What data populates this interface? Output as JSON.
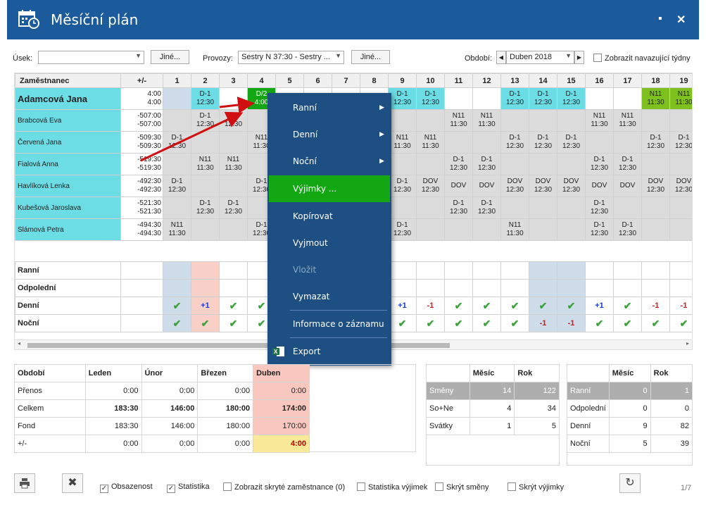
{
  "window": {
    "title": "Měsíční plán",
    "min": "▪",
    "close": "✕"
  },
  "filters": {
    "usek_label": "Úsek:",
    "usek_value": "",
    "jine1": "Jiné...",
    "provozy_label": "Provozy:",
    "provozy_value": "Sestry N 37:30 - Sestry ...",
    "jine2": "Jiné...",
    "obdobi_label": "Období:",
    "obdobi_value": "Duben 2018",
    "navazujici_label": "Zobrazit navazující týdny"
  },
  "grid": {
    "h_name": "Zaměstnanec",
    "h_diff": "+/-",
    "days": [
      "1",
      "2",
      "3",
      "4",
      "5",
      "6",
      "7",
      "8",
      "9",
      "10",
      "11",
      "12",
      "13",
      "14",
      "15",
      "16",
      "17",
      "18",
      "19"
    ],
    "rows": [
      {
        "name": "Adamcová Jana",
        "d1": "4:00",
        "d2": "4:00",
        "cells": [
          "",
          "D-1|12:30",
          "",
          "D/2|4:00",
          "",
          "",
          "",
          "",
          "D-1|12:30",
          "D-1|12:30",
          "",
          "",
          "D-1|12:30",
          "D-1|12:30",
          "D-1|12:30",
          "",
          "",
          "N11|11:30",
          "N11|11:30"
        ]
      },
      {
        "name": "Brabcová Eva",
        "d1": "-507:00",
        "d2": "-507:00",
        "cells": [
          "",
          "D-1|12:30",
          "D-1|12:30",
          "",
          "",
          "",
          "",
          "",
          "",
          "",
          "N11|11:30",
          "N11|11:30",
          "",
          "",
          "",
          "N11|11:30",
          "N11|11:30",
          "",
          ""
        ]
      },
      {
        "name": "Červená Jana",
        "d1": "-509:30",
        "d2": "-509:30",
        "cells": [
          "D-1|12:30",
          "",
          "",
          "N11|11:30",
          "",
          "",
          "",
          "",
          "N11|11:30",
          "N11|11:30",
          "",
          "",
          "D-1|12:30",
          "D-1|12:30",
          "D-1|12:30",
          "",
          "",
          "D-1|12:30",
          "D-1|12:30"
        ]
      },
      {
        "name": "Fialová Anna",
        "d1": "-519:30",
        "d2": "-519:30",
        "cells": [
          "",
          "N11|11:30",
          "N11|11:30",
          "",
          "",
          "",
          "",
          "",
          "",
          "",
          "D-1|12:30",
          "D-1|12:30",
          "",
          "",
          "",
          "D-1|12:30",
          "D-1|12:30",
          "",
          ""
        ]
      },
      {
        "name": "Havlíková Lenka",
        "d1": "-492:30",
        "d2": "-492:30",
        "cells": [
          "D-1|12:30",
          "",
          "",
          "D-1|12:30",
          "",
          "",
          "",
          "",
          "D-1|12:30",
          "DOV|12:30",
          "DOV",
          "DOV",
          "DOV|12:30",
          "DOV|12:30",
          "DOV|12:30",
          "DOV",
          "DOV",
          "DOV|12:30",
          "DOV|12:30"
        ]
      },
      {
        "name": "Kubešová Jaroslava",
        "d1": "-521:30",
        "d2": "-521:30",
        "cells": [
          "",
          "D-1|12:30",
          "D-1|12:30",
          "",
          "",
          "",
          "",
          "",
          "",
          "",
          "D-1|12:30",
          "D-1|12:30",
          "",
          "",
          "",
          "D-1|12:30",
          "",
          "",
          ""
        ]
      },
      {
        "name": "Slámová Petra",
        "d1": "-494:30",
        "d2": "-494:30",
        "cells": [
          "N11|11:30",
          "",
          "",
          "D-1|12:30",
          "",
          "",
          "",
          "",
          "D-1|12:30",
          "",
          "",
          "",
          "N11|11:30",
          "",
          "",
          "D-1|12:30",
          "D-1|12:30",
          "",
          ""
        ]
      }
    ],
    "summary": [
      {
        "label": "Ranní",
        "cells": [
          "",
          "",
          "",
          "",
          "",
          "",
          "",
          "",
          "",
          "",
          "",
          "",
          "",
          "",
          "",
          "",
          "",
          "",
          ""
        ]
      },
      {
        "label": "Odpolední",
        "cells": [
          "",
          "",
          "",
          "",
          "",
          "",
          "",
          "",
          "",
          "",
          "",
          "",
          "",
          "",
          "",
          "",
          "",
          "",
          ""
        ]
      },
      {
        "label": "Denní",
        "cells": [
          "✔",
          "+1",
          "✔",
          "✔",
          "",
          "",
          "",
          "",
          "+1",
          "-1",
          "✔",
          "✔",
          "✔",
          "✔",
          "✔",
          "+1",
          "✔",
          "-1",
          "-1"
        ]
      },
      {
        "label": "Noční",
        "cells": [
          "✔",
          "✔",
          "✔",
          "✔",
          "",
          "",
          "",
          "",
          "✔",
          "✔",
          "✔",
          "✔",
          "✔",
          "-1",
          "-1",
          "✔",
          "✔",
          "✔",
          "✔"
        ]
      }
    ]
  },
  "menu": {
    "items": [
      "Ranní",
      "Denní",
      "Noční",
      "Výjimky ...",
      "Kopírovat",
      "Vyjmout",
      "Vložit",
      "Vymazat",
      "Informace o záznamu",
      "Export"
    ]
  },
  "period_table": {
    "headers": [
      "Období",
      "Leden",
      "Únor",
      "Březen",
      "Duben"
    ],
    "rows": [
      [
        "Přenos",
        "0:00",
        "0:00",
        "0:00",
        "0:00"
      ],
      [
        "Celkem",
        "183:30",
        "146:00",
        "180:00",
        "174:00"
      ],
      [
        "Fond",
        "183:30",
        "146:00",
        "180:00",
        "170:00"
      ],
      [
        "+/-",
        "0:00",
        "0:00",
        "0:00",
        "4:00"
      ]
    ]
  },
  "stats_table": {
    "headers": [
      "",
      "Měsíc",
      "Rok"
    ],
    "rows": [
      [
        "Směny",
        "14",
        "122"
      ],
      [
        "So+Ne",
        "4",
        "34"
      ],
      [
        "Svátky",
        "1",
        "5"
      ]
    ]
  },
  "shift_table": {
    "headers": [
      "",
      "Měsíc",
      "Rok"
    ],
    "rows": [
      [
        "Ranní",
        "0",
        "1"
      ],
      [
        "Odpolední",
        "0",
        "0"
      ],
      [
        "Denní",
        "9",
        "82"
      ],
      [
        "Noční",
        "5",
        "39"
      ]
    ]
  },
  "bottom": {
    "obsazenost": "Obsazenost",
    "statistika": "Statistika",
    "skryte": "Zobrazit skryté zaměstnance (0)",
    "stat_vyjimek": "Statistika výjimek",
    "skryt_smeny": "Skrýt směny",
    "skryt_vyjimky": "Skrýt výjimky",
    "page": "1/7"
  }
}
